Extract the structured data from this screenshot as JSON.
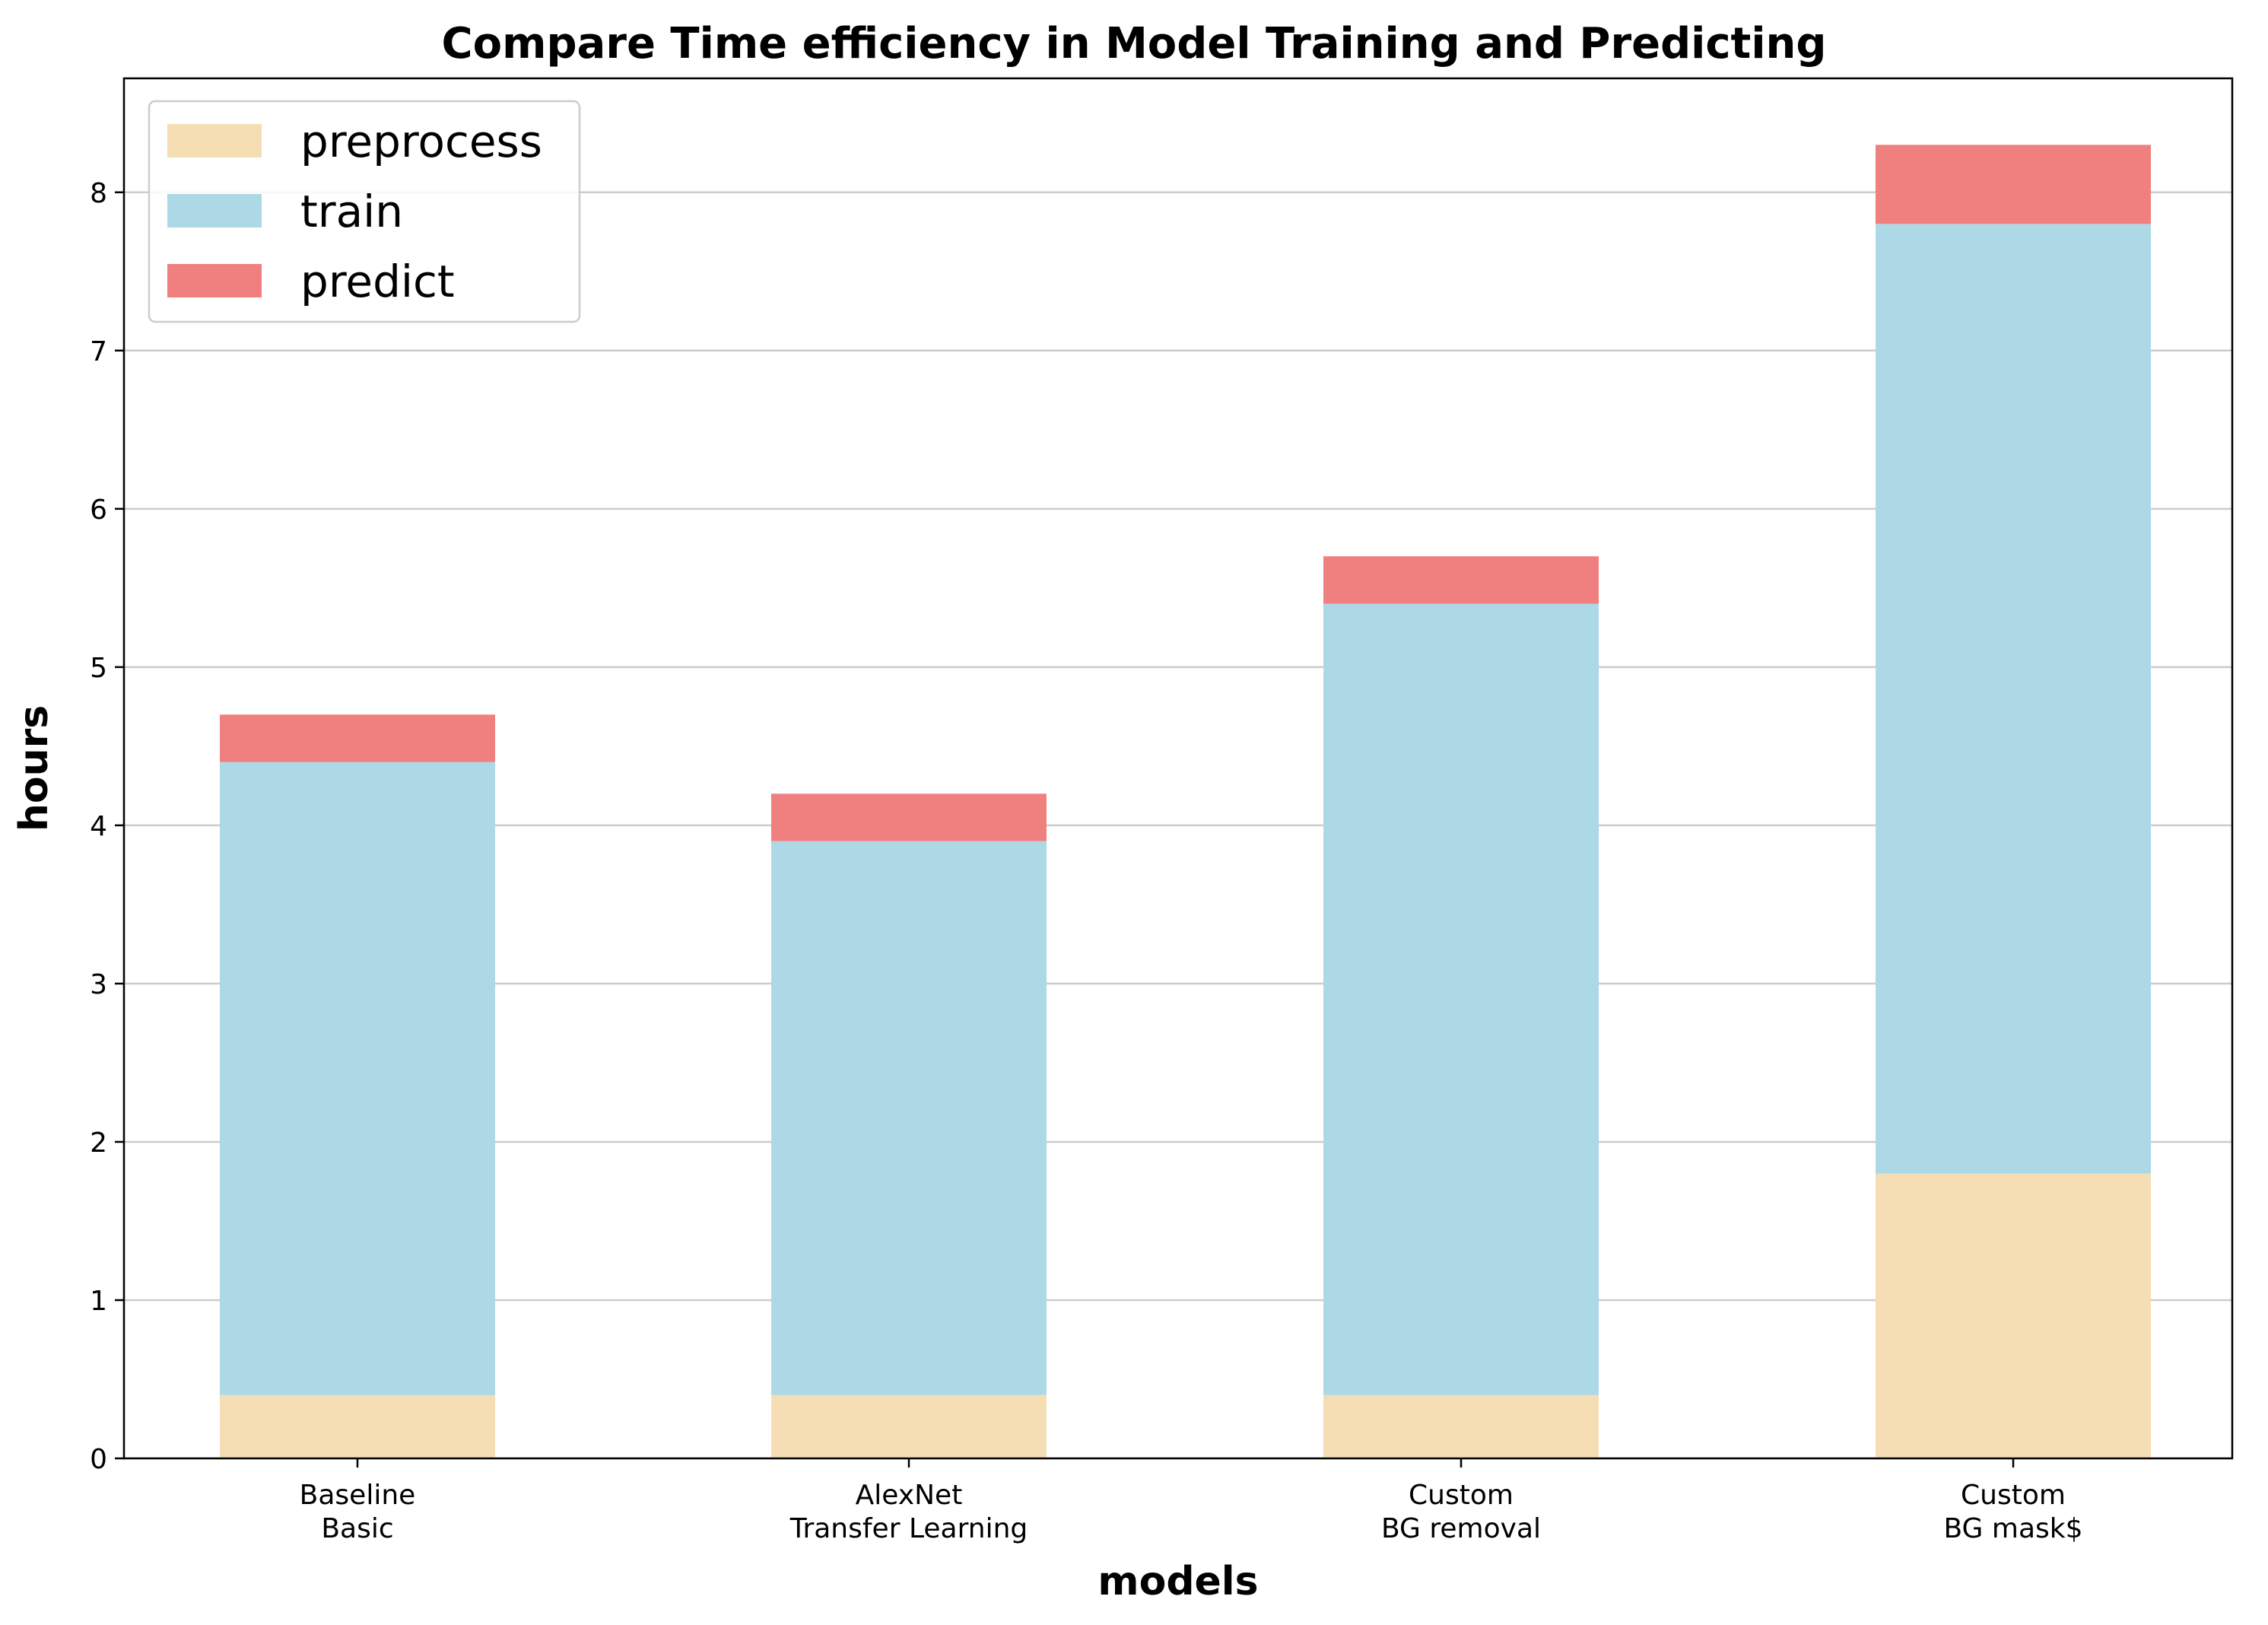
{
  "chart_data": {
    "type": "bar",
    "stacked": true,
    "title": "Compare Time efficiency in Model Training and Predicting",
    "xlabel": "models",
    "ylabel": "hours",
    "categories": [
      [
        "Baseline",
        "Basic"
      ],
      [
        "AlexNet",
        "Transfer Learning"
      ],
      [
        "Custom",
        "BG removal"
      ],
      [
        "Custom",
        "BG mask$"
      ]
    ],
    "series": [
      {
        "name": "preprocess",
        "color": "#f5deb3",
        "values": [
          0.4,
          0.4,
          0.4,
          1.8
        ]
      },
      {
        "name": "train",
        "color": "#add8e6",
        "values": [
          4.0,
          3.5,
          5.0,
          6.0
        ]
      },
      {
        "name": "predict",
        "color": "#f08080",
        "values": [
          0.3,
          0.3,
          0.3,
          0.5
        ]
      }
    ],
    "ylim": [
      0,
      8.72
    ],
    "yticks": [
      0,
      1,
      2,
      3,
      4,
      5,
      6,
      7,
      8
    ],
    "grid": "y",
    "legend_position": "top-left"
  }
}
